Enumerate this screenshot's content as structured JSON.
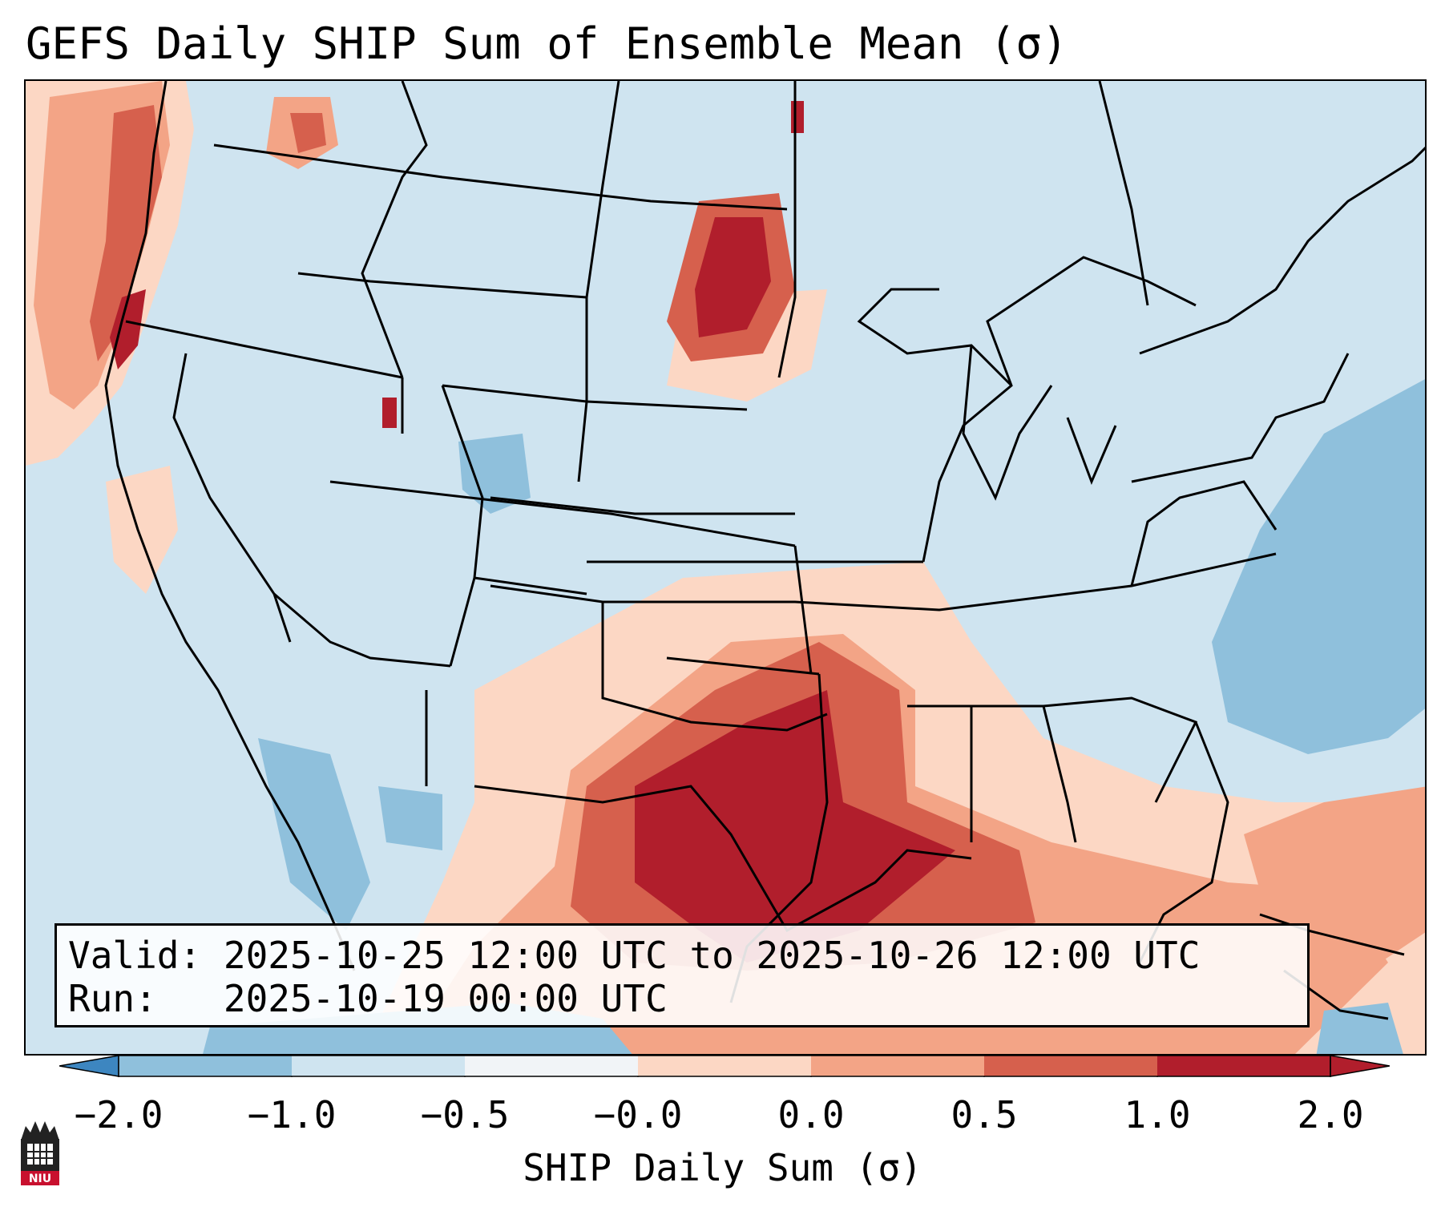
{
  "title": "GEFS Daily SHIP Sum of Ensemble Mean (σ)",
  "info": {
    "valid_label": "Valid:",
    "valid_value": "2025-10-25 12:00 UTC to 2025-10-26 12:00 UTC",
    "run_label": "Run:",
    "run_value": "2025-10-19 00:00 UTC"
  },
  "colorbar": {
    "label": "SHIP Daily Sum (σ)",
    "ticks": [
      "−2.0",
      "−1.0",
      "−0.5",
      "−0.0",
      "0.0",
      "0.5",
      "1.0",
      "2.0"
    ],
    "colors": [
      "#3d86c0",
      "#8fc0dc",
      "#cfe4f0",
      "#f1f4f7",
      "#fcd7c4",
      "#f3a486",
      "#d6604d",
      "#b11e2c"
    ]
  },
  "legend_icon": "niu-logo-icon",
  "logo_text": "NIU"
}
